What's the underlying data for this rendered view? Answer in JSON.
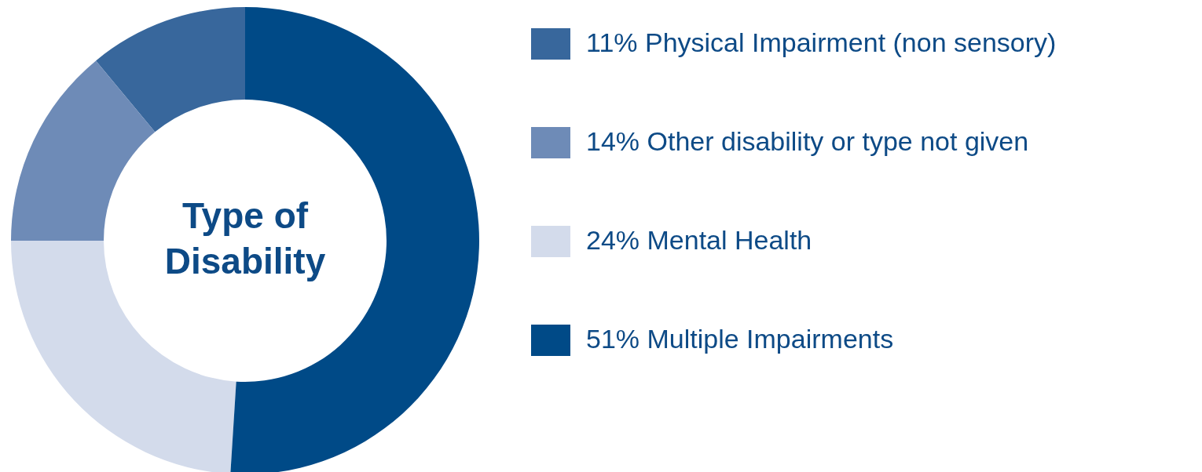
{
  "chart_data": {
    "type": "donut",
    "title": "Type of Disability",
    "categories": [
      "Physical Impairment (non sensory)",
      "Other disability or type not given",
      "Mental Health",
      "Multiple Impairments"
    ],
    "values": [
      11,
      14,
      24,
      51
    ],
    "value_labels": [
      "11%",
      "14%",
      "24%",
      "51%"
    ],
    "colors": [
      "#38679c",
      "#6e8bb7",
      "#d3dbeb",
      "#004a87"
    ],
    "legend": "right"
  }
}
